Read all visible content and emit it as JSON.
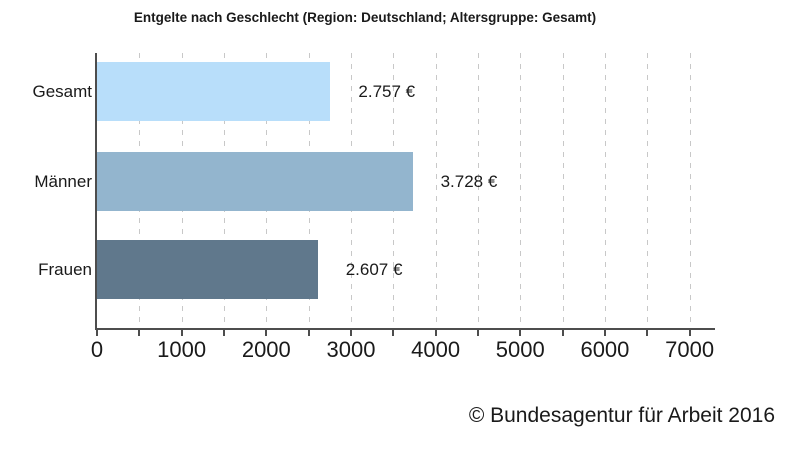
{
  "title": "Entgelte nach Geschlecht (Region: Deutschland; Altersgruppe: Gesamt)",
  "footer": "© Bundesagentur für Arbeit 2016",
  "colors": {
    "background": "#ffffff",
    "axis": "#4d4d4d",
    "grid": "#c8c8c8",
    "text": "#1a1a1a"
  },
  "chart_data": {
    "type": "bar",
    "orientation": "horizontal",
    "title": "Entgelte nach Geschlecht (Region: Deutschland; Altersgruppe: Gesamt)",
    "categories": [
      "Gesamt",
      "Männer",
      "Frauen"
    ],
    "values": [
      2757,
      3728,
      2607
    ],
    "value_labels": [
      "2.757 €",
      "3.728 €",
      "2.607 €"
    ],
    "bar_colors": [
      "#b8defa",
      "#93b5ce",
      "#60788c"
    ],
    "unit": "€",
    "xlabel": "",
    "ylabel": "",
    "xlim": [
      0,
      7300
    ],
    "x_major_ticks": [
      0,
      1000,
      2000,
      3000,
      4000,
      5000,
      6000,
      7000
    ],
    "x_tick_labels": [
      "0",
      "1000",
      "2000",
      "3000",
      "4000",
      "5000",
      "6000",
      "7000"
    ],
    "x_minor_step": 500,
    "grid": "dashed vertical gridlines every 500",
    "legend": "none"
  }
}
